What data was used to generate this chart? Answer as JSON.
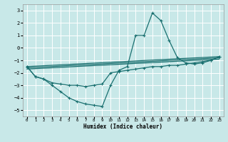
{
  "title": "",
  "xlabel": "Humidex (Indice chaleur)",
  "bg_color": "#c8e8e8",
  "grid_color": "#ffffff",
  "line_color": "#1a7070",
  "xlim": [
    -0.5,
    23.5
  ],
  "ylim": [
    -5.5,
    3.5
  ],
  "yticks": [
    -5,
    -4,
    -3,
    -2,
    -1,
    0,
    1,
    2,
    3
  ],
  "xticks": [
    0,
    1,
    2,
    3,
    4,
    5,
    6,
    7,
    8,
    9,
    10,
    11,
    12,
    13,
    14,
    15,
    16,
    17,
    18,
    19,
    20,
    21,
    22,
    23
  ],
  "lines": [
    {
      "x": [
        0,
        1,
        2,
        3,
        4,
        5,
        6,
        7,
        8,
        9,
        10,
        11,
        12,
        13,
        14,
        15,
        16,
        17,
        18,
        19,
        20,
        21,
        22,
        23
      ],
      "y": [
        -1.5,
        -2.3,
        -2.5,
        -3.0,
        -3.5,
        -4.0,
        -4.3,
        -4.5,
        -4.6,
        -4.7,
        -3.0,
        -1.8,
        -1.5,
        1.0,
        1.0,
        2.8,
        2.2,
        0.6,
        -0.8,
        -1.2,
        -1.3,
        -1.2,
        -1.0,
        -0.7
      ]
    },
    {
      "x": [
        0,
        23
      ],
      "y": [
        -1.5,
        -0.7
      ]
    },
    {
      "x": [
        0,
        23
      ],
      "y": [
        -1.6,
        -0.8
      ]
    },
    {
      "x": [
        0,
        23
      ],
      "y": [
        -1.7,
        -0.9
      ]
    },
    {
      "x": [
        0,
        1,
        2,
        3,
        4,
        5,
        6,
        7,
        8,
        9,
        10,
        11,
        12,
        13,
        14,
        15,
        16,
        17,
        18,
        19,
        20,
        21,
        22,
        23
      ],
      "y": [
        -1.5,
        -2.3,
        -2.5,
        -2.8,
        -2.9,
        -3.0,
        -3.0,
        -3.1,
        -3.0,
        -2.9,
        -2.0,
        -1.9,
        -1.8,
        -1.7,
        -1.6,
        -1.5,
        -1.5,
        -1.4,
        -1.4,
        -1.3,
        -1.2,
        -1.1,
        -1.0,
        -0.7
      ]
    }
  ]
}
